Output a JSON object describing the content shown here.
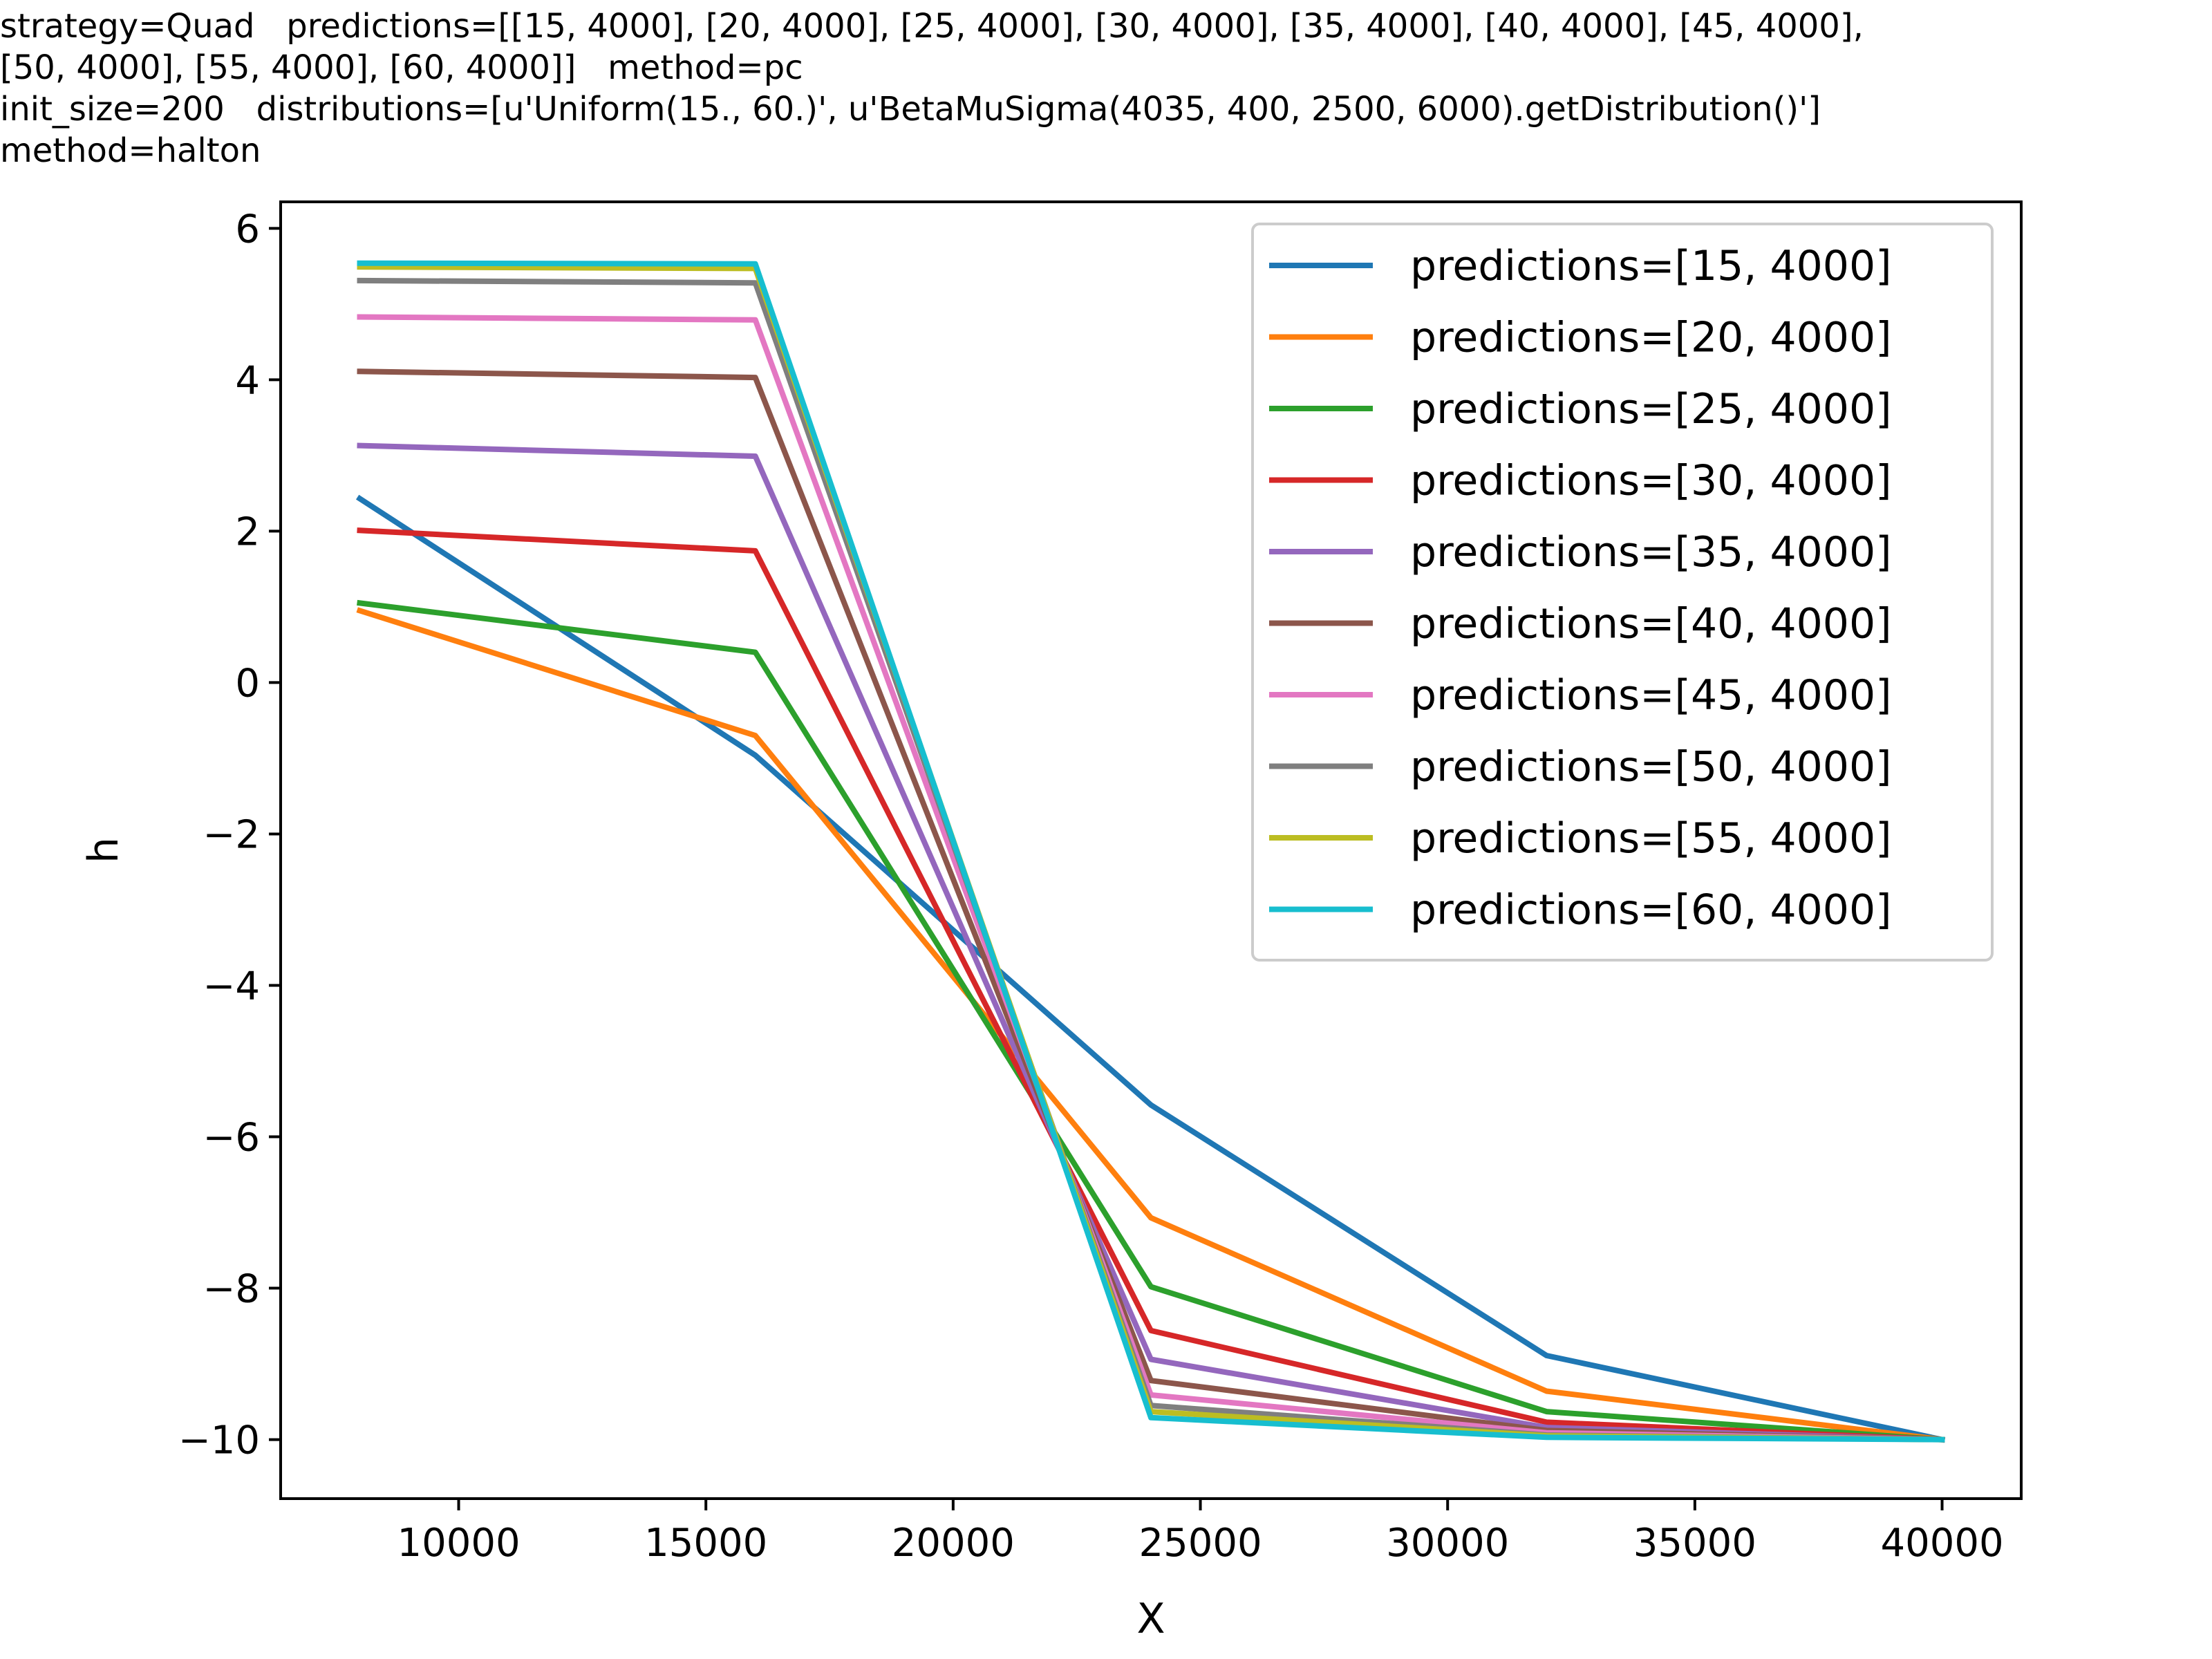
{
  "header_lines": [
    "strategy=Quad   predictions=[[15, 4000], [20, 4000], [25, 4000], [30, 4000], [35, 4000], [40, 4000], [45, 4000],",
    "[50, 4000], [55, 4000], [60, 4000]]   method=pc",
    "init_size=200   distributions=[u'Uniform(15., 60.)', u'BetaMuSigma(4035, 400, 2500, 6000).getDistribution()']",
    "method=halton"
  ],
  "chart_data": {
    "type": "line",
    "xlabel": "X",
    "ylabel": "h",
    "xlim": [
      6400,
      41600
    ],
    "ylim": [
      -10.78,
      6.35
    ],
    "xticks": [
      10000,
      15000,
      20000,
      25000,
      30000,
      35000,
      40000
    ],
    "yticks": [
      6,
      4,
      2,
      0,
      -2,
      -4,
      -6,
      -8,
      -10
    ],
    "ytick_labels": [
      "6",
      "4",
      "2",
      "0",
      "−2",
      "−4",
      "−6",
      "−8",
      "−10"
    ],
    "grid": false,
    "legend_position": "top-right",
    "x": [
      8000,
      16000,
      24000,
      32000,
      40000
    ],
    "series": [
      {
        "name": "predictions=[15, 4000]",
        "color": "#1f77b4",
        "values": [
          2.43,
          -0.96,
          -5.58,
          -8.89,
          -10.0
        ]
      },
      {
        "name": "predictions=[20, 4000]",
        "color": "#ff7f0e",
        "values": [
          0.95,
          -0.7,
          -7.07,
          -9.36,
          -10.0
        ]
      },
      {
        "name": "predictions=[25, 4000]",
        "color": "#2ca02c",
        "values": [
          1.05,
          0.4,
          -7.98,
          -9.63,
          -10.0
        ]
      },
      {
        "name": "predictions=[30, 4000]",
        "color": "#d62728",
        "values": [
          2.01,
          1.74,
          -8.56,
          -9.77,
          -10.0
        ]
      },
      {
        "name": "predictions=[35, 4000]",
        "color": "#9467bd",
        "values": [
          3.13,
          2.99,
          -8.94,
          -9.84,
          -10.0
        ]
      },
      {
        "name": "predictions=[40, 4000]",
        "color": "#8c564b",
        "values": [
          4.11,
          4.03,
          -9.22,
          -9.88,
          -10.0
        ]
      },
      {
        "name": "predictions=[45, 4000]",
        "color": "#e377c2",
        "values": [
          4.83,
          4.79,
          -9.41,
          -9.91,
          -10.0
        ]
      },
      {
        "name": "predictions=[50, 4000]",
        "color": "#7f7f7f",
        "values": [
          5.31,
          5.28,
          -9.55,
          -9.94,
          -10.0
        ]
      },
      {
        "name": "predictions=[55, 4000]",
        "color": "#bcbd22",
        "values": [
          5.49,
          5.47,
          -9.63,
          -9.95,
          -10.0
        ]
      },
      {
        "name": "predictions=[60, 4000]",
        "color": "#17becf",
        "values": [
          5.54,
          5.53,
          -9.71,
          -9.97,
          -10.0
        ]
      }
    ]
  }
}
